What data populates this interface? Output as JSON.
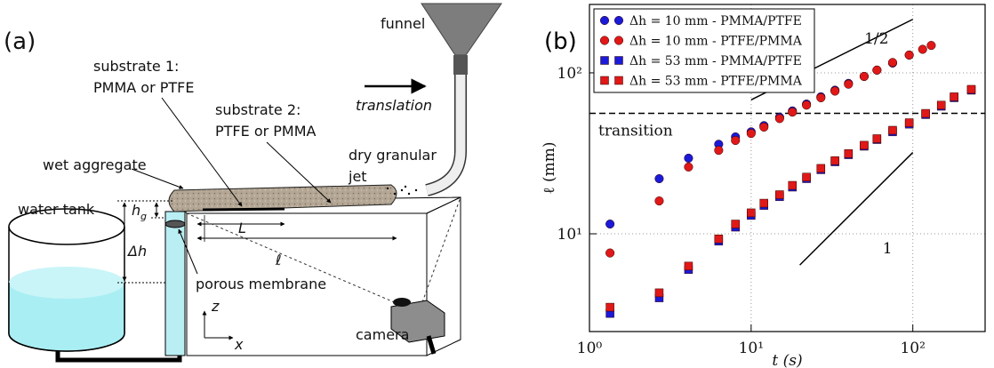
{
  "diagram": {
    "panel": "(a)",
    "labels": {
      "funnel": "funnel",
      "substrate1": "substrate 1:",
      "substrate1_material": "PMMA or PTFE",
      "translation": "translation",
      "substrate2": "substrate 2:",
      "substrate2_material": "PTFE or PMMA",
      "jet1": "dry granular",
      "jet2": "jet",
      "aggregate": "wet aggregate",
      "tank": "water tank",
      "hg": "h",
      "hg_sub": "g",
      "L": "L",
      "dh": "Δh",
      "ell": "ℓ",
      "membrane": "porous membrane",
      "z": "z",
      "x": "x",
      "camera": "camera"
    }
  },
  "chart_data": {
    "type": "scatter",
    "panel": "(b)",
    "x_label": "t (s)",
    "y_label": "ℓ (mm)",
    "xscale": "log",
    "yscale": "log",
    "grid": true,
    "legend": "upper left",
    "xlim": [
      1,
      280
    ],
    "ylim": [
      2.47,
      266
    ],
    "xticks": [
      {
        "value": 1,
        "label": "10⁰"
      },
      {
        "value": 10,
        "label": "10¹"
      },
      {
        "value": 100,
        "label": "10²"
      }
    ],
    "yticks": [
      {
        "value": 10,
        "label": "10¹"
      },
      {
        "value": 100,
        "label": "10²"
      }
    ],
    "series": [
      {
        "name": "Δh = 10 mm - PMMA/PTFE",
        "color": "#1a1ad8",
        "marker": "circle",
        "x": [
          1.34,
          2.7,
          4.1,
          6.3,
          8,
          10,
          12,
          15,
          18,
          22,
          27,
          33,
          40,
          50,
          60,
          75,
          95
        ],
        "values": [
          11.5,
          22,
          29.5,
          36,
          40,
          43,
          47,
          53,
          58,
          64,
          71,
          78,
          86,
          95,
          104,
          115,
          129
        ]
      },
      {
        "name": "Δh = 10 mm - PTFE/PMMA",
        "color": "#e01818",
        "marker": "circle",
        "x": [
          1.34,
          2.7,
          4.1,
          6.3,
          8,
          10,
          12,
          15,
          18,
          22,
          27,
          33,
          40,
          50,
          60,
          75,
          95,
          115,
          130
        ],
        "values": [
          7.6,
          16,
          26,
          33,
          38,
          42,
          46,
          52,
          57,
          63,
          70,
          77,
          85,
          95,
          104,
          116,
          129,
          140,
          148
        ]
      },
      {
        "name": "Δh = 53 mm - PMMA/PTFE",
        "color": "#1a1ad8",
        "marker": "square",
        "x": [
          1.34,
          2.7,
          4.1,
          6.3,
          8,
          10,
          12,
          15,
          18,
          22,
          27,
          33,
          40,
          50,
          60,
          75,
          95,
          120,
          150,
          180,
          230
        ],
        "values": [
          3.2,
          4.0,
          6.0,
          9.0,
          11,
          13,
          15,
          17,
          19.5,
          22,
          25,
          28,
          31,
          35,
          38.5,
          43,
          48,
          55,
          62,
          70,
          78
        ]
      },
      {
        "name": "Δh = 53 mm - PTFE/PMMA",
        "color": "#e01818",
        "marker": "square",
        "x": [
          1.34,
          2.7,
          4.1,
          6.3,
          8,
          10,
          12,
          15,
          18,
          22,
          27,
          33,
          40,
          50,
          60,
          75,
          95,
          120,
          150,
          180,
          230
        ],
        "values": [
          3.5,
          4.3,
          6.3,
          9.3,
          11.5,
          13.5,
          15.5,
          17.5,
          20,
          22.5,
          25.5,
          28.5,
          31.5,
          35.5,
          39,
          44,
          49,
          56,
          63,
          71,
          79
        ]
      }
    ],
    "guides": [
      {
        "label": "1/2",
        "x": [
          10,
          100
        ],
        "y": [
          68,
          215
        ]
      },
      {
        "label": "1",
        "x": [
          20,
          100
        ],
        "y": [
          6.4,
          32
        ]
      }
    ],
    "hline": {
      "y": 56,
      "label": "transition"
    }
  }
}
